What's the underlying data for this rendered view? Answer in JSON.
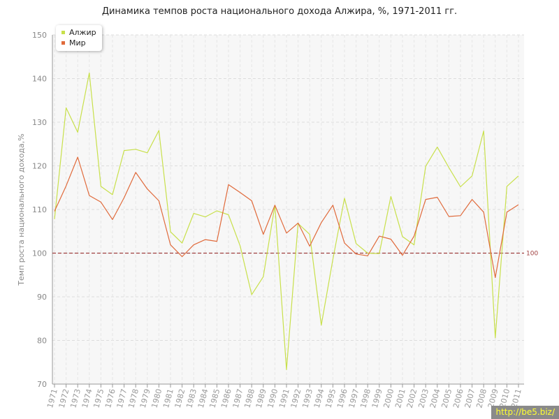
{
  "page": {
    "title": "Динамика темпов роста национального дохода Алжира, %, 1971-2011 гг.",
    "watermark": "http://be5.biz/"
  },
  "colors": {
    "algeria": "#c8e04b",
    "world": "#e06a3b",
    "reference_line": "#a04040"
  },
  "chart_data": {
    "type": "line",
    "title": "Динамика темпов роста национального дохода Алжира, %, 1971-2011 гг.",
    "ylabel": "Темп роста национального дохода,%",
    "xlabel": "",
    "ylim": [
      70,
      150
    ],
    "yticks": [
      70,
      80,
      90,
      100,
      110,
      120,
      130,
      140,
      150
    ],
    "grid": true,
    "legend_position": "top-left",
    "reference_line": {
      "value": 100,
      "label": "100"
    },
    "categories": [
      "1971",
      "1972",
      "1973",
      "1974",
      "1975",
      "1976",
      "1977",
      "1978",
      "1979",
      "1980",
      "1981",
      "1982",
      "1983",
      "1984",
      "1985",
      "1986",
      "1987",
      "1988",
      "1989",
      "1990",
      "1991",
      "1992",
      "1993",
      "1994",
      "1995",
      "1996",
      "1997",
      "1998",
      "1999",
      "2000",
      "2001",
      "2002",
      "2003",
      "2004",
      "2005",
      "2006",
      "2007",
      "2008",
      "2009",
      "2010",
      "2011"
    ],
    "series": [
      {
        "name": "Алжир",
        "color": "#c8e04b",
        "values": [
          107.8,
          133.3,
          127.7,
          141.3,
          115.3,
          113.4,
          123.5,
          123.8,
          123.0,
          128.1,
          104.9,
          102.3,
          109.1,
          108.3,
          109.7,
          108.8,
          101.7,
          90.5,
          94.6,
          111.0,
          73.3,
          106.8,
          104.3,
          83.5,
          98.6,
          112.6,
          102.2,
          100.0,
          99.9,
          113.0,
          103.8,
          101.9,
          119.9,
          124.3,
          119.6,
          115.2,
          117.7,
          128.0,
          80.6,
          115.3,
          117.7
        ]
      },
      {
        "name": "Мир",
        "color": "#e06a3b",
        "values": [
          109.6,
          115.4,
          122.0,
          113.2,
          111.7,
          107.7,
          112.7,
          118.5,
          114.7,
          112.0,
          101.9,
          99.2,
          101.9,
          103.1,
          102.7,
          115.7,
          113.9,
          112.0,
          104.3,
          111.0,
          104.6,
          106.9,
          101.6,
          107.0,
          111.0,
          102.3,
          99.8,
          99.4,
          103.9,
          103.2,
          99.5,
          103.9,
          112.3,
          112.8,
          108.4,
          108.6,
          112.3,
          109.4,
          94.4,
          109.4,
          111.1
        ]
      }
    ]
  }
}
